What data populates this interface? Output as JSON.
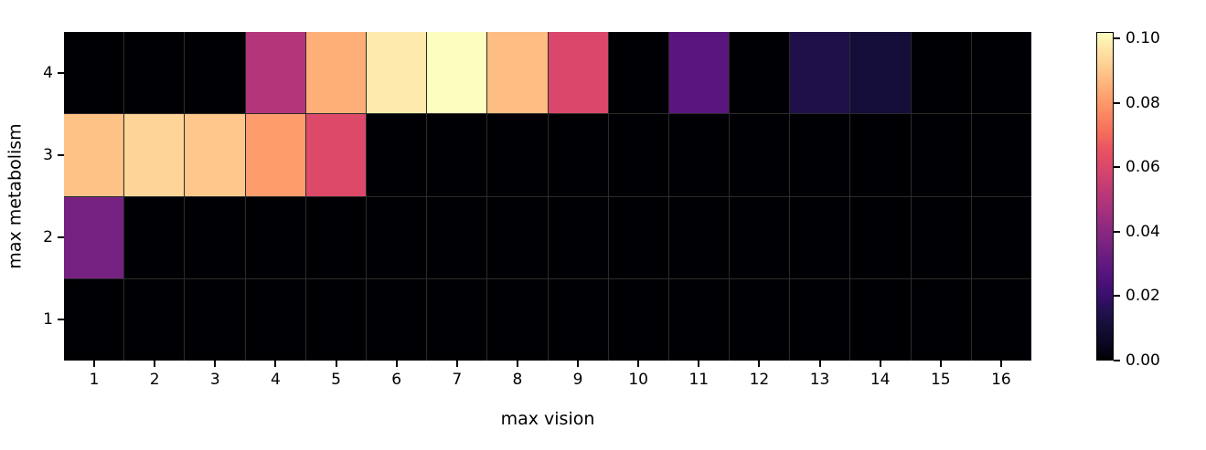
{
  "chart_data": {
    "type": "heatmap",
    "title": "",
    "xlabel": "max vision",
    "ylabel": "max metabolism",
    "x_tick_labels": [
      "1",
      "2",
      "3",
      "4",
      "5",
      "6",
      "7",
      "8",
      "9",
      "10",
      "11",
      "12",
      "13",
      "14",
      "15",
      "16"
    ],
    "y_tick_labels": [
      "4",
      "3",
      "2",
      "1"
    ],
    "rows": [
      {
        "y": "4",
        "values": [
          0,
          0,
          0,
          0.05,
          0.085,
          0.098,
          0.102,
          0.088,
          0.06,
          0,
          0.028,
          0,
          0.014,
          0.011,
          0,
          0
        ]
      },
      {
        "y": "3",
        "values": [
          0.089,
          0.093,
          0.09,
          0.081,
          0.061,
          0,
          0,
          0,
          0,
          0,
          0,
          0,
          0,
          0,
          0,
          0
        ]
      },
      {
        "y": "2",
        "values": [
          0.035,
          0,
          0,
          0,
          0,
          0,
          0,
          0,
          0,
          0,
          0,
          0,
          0,
          0,
          0,
          0
        ]
      },
      {
        "y": "1",
        "values": [
          0,
          0,
          0,
          0,
          0,
          0,
          0,
          0,
          0,
          0,
          0,
          0,
          0,
          0,
          0,
          0
        ]
      }
    ],
    "vmin": 0,
    "vmax": 0.102,
    "colormap": "magma",
    "colormap_stops": [
      [
        0.0,
        "#000004"
      ],
      [
        0.05,
        "#0a0722"
      ],
      [
        0.1,
        "#140e36"
      ],
      [
        0.15,
        "#231150"
      ],
      [
        0.2,
        "#3b0f70"
      ],
      [
        0.25,
        "#51127c"
      ],
      [
        0.3,
        "#641a80"
      ],
      [
        0.35,
        "#782281"
      ],
      [
        0.4,
        "#8c2981"
      ],
      [
        0.45,
        "#a3307e"
      ],
      [
        0.5,
        "#b73779"
      ],
      [
        0.55,
        "#cb4071"
      ],
      [
        0.6,
        "#de4968"
      ],
      [
        0.65,
        "#ea5661"
      ],
      [
        0.7,
        "#f7705c"
      ],
      [
        0.75,
        "#fb8861"
      ],
      [
        0.8,
        "#fe9f6d"
      ],
      [
        0.85,
        "#feb77e"
      ],
      [
        0.9,
        "#fecf92"
      ],
      [
        0.95,
        "#fde5a7"
      ],
      [
        1.0,
        "#fcfdbf"
      ]
    ],
    "colorbar": {
      "tick_labels": [
        "0.00",
        "0.02",
        "0.04",
        "0.06",
        "0.08",
        "0.10"
      ],
      "tick_values": [
        0,
        0.02,
        0.04,
        0.06,
        0.08,
        0.1
      ]
    },
    "grid": true,
    "gridline_color": "#2b2b2b",
    "background": "#ffffff"
  }
}
